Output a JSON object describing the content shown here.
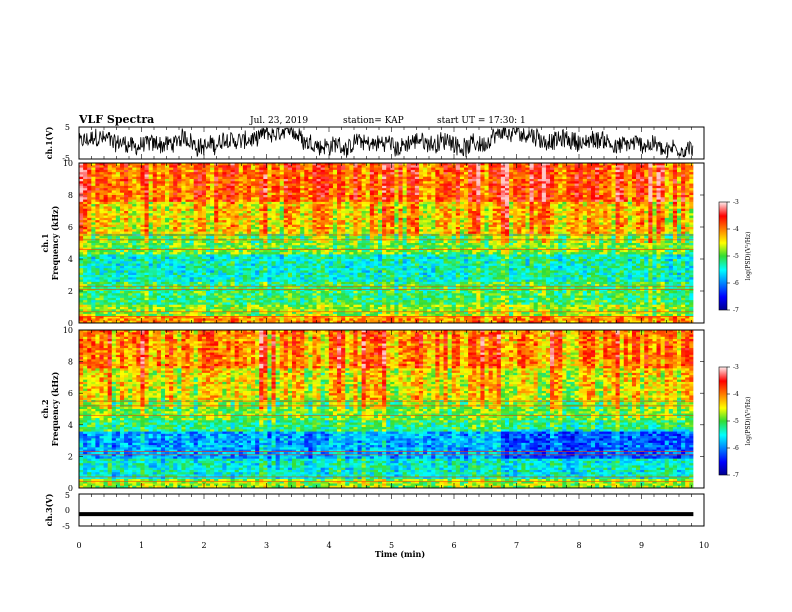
{
  "header": {
    "title": "VLF Spectra",
    "date": "Jul. 23, 2019",
    "station": "station= KAP",
    "start": "start UT = 17:30: 1"
  },
  "chart_data": [
    {
      "id": "ch1-waveform",
      "type": "line",
      "ylabel": "ch.1(V)",
      "ylim": [
        -5,
        5
      ],
      "yticks": [
        "5",
        "-5"
      ],
      "xlim": [
        0,
        10
      ],
      "x_extent": [
        0,
        9.83
      ]
    },
    {
      "id": "ch1-spectrogram",
      "type": "heatmap",
      "ylabel": "ch.1\nFrequency (kHz)",
      "ylim": [
        0,
        10
      ],
      "yticks": [
        "0",
        "2",
        "4",
        "6",
        "8",
        "10"
      ],
      "xlim": [
        0,
        10
      ],
      "x_extent": [
        0,
        9.83
      ],
      "colorbar": {
        "label": "log(PSD)(V²/Hz)",
        "range": [
          -7,
          -3
        ],
        "ticks": [
          "-3",
          "-4",
          "-5",
          "-6",
          "-7"
        ]
      }
    },
    {
      "id": "ch2-spectrogram",
      "type": "heatmap",
      "ylabel": "ch.2\nFrequency (kHz)",
      "ylim": [
        0,
        10
      ],
      "yticks": [
        "0",
        "2",
        "4",
        "6",
        "8",
        "10"
      ],
      "xlim": [
        0,
        10
      ],
      "x_extent": [
        0,
        9.83
      ],
      "colorbar": {
        "label": "log(PSD)(V²/Hz)",
        "range": [
          -7,
          -3
        ],
        "ticks": [
          "-3",
          "-4",
          "-5",
          "-6",
          "-7"
        ]
      }
    },
    {
      "id": "ch3-waveform",
      "type": "line",
      "ylabel": "ch.3(V)",
      "ylim": [
        -5,
        5
      ],
      "yticks": [
        "5",
        "0",
        "-5"
      ],
      "constant_value": -1.3,
      "xlim": [
        0,
        10
      ],
      "x_extent": [
        0,
        9.83
      ]
    }
  ],
  "xaxis": {
    "label": "Time (min)",
    "ticks": [
      "0",
      "1",
      "2",
      "3",
      "4",
      "5",
      "6",
      "7",
      "8",
      "9",
      "10"
    ]
  }
}
